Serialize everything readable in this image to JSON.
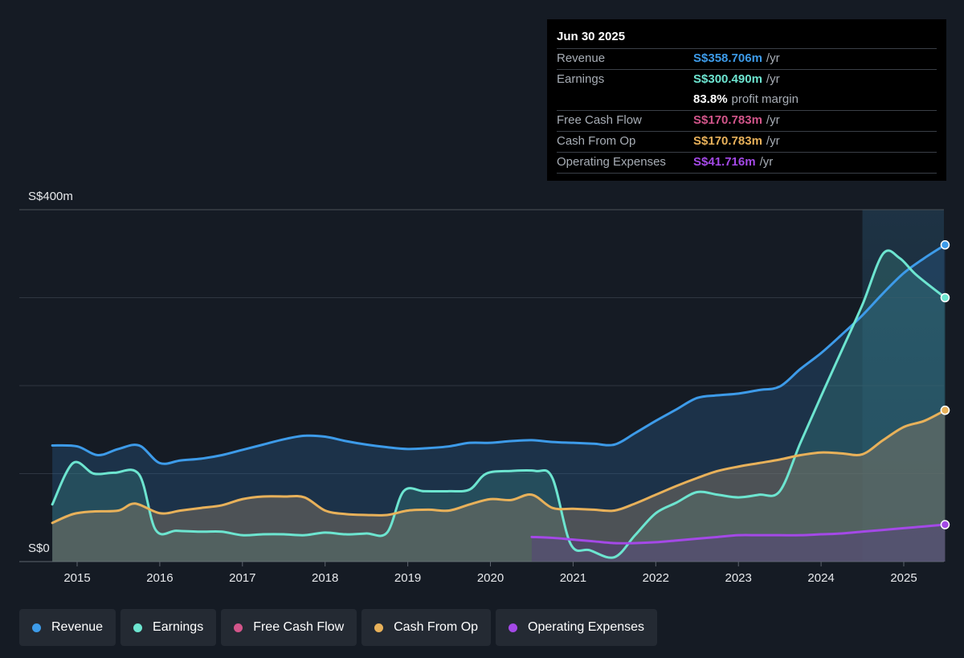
{
  "tooltip": {
    "date": "Jun 30 2025",
    "rows": [
      {
        "label": "Revenue",
        "value": "S$358.706m",
        "unit": "/yr",
        "color": "#3d9be9"
      },
      {
        "label": "Earnings",
        "value": "S$300.490m",
        "unit": "/yr",
        "color": "#6de5d0"
      },
      {
        "label": "",
        "value": "83.8%",
        "unit": "profit margin",
        "color": "#ffffff"
      },
      {
        "label": "Free Cash Flow",
        "value": "S$170.783m",
        "unit": "/yr",
        "color": "#d2558a"
      },
      {
        "label": "Cash From Op",
        "value": "S$170.783m",
        "unit": "/yr",
        "color": "#e8b15a"
      },
      {
        "label": "Operating Expenses",
        "value": "S$41.716m",
        "unit": "/yr",
        "color": "#a449e7"
      }
    ]
  },
  "legend": [
    {
      "label": "Revenue",
      "color": "#3d9be9"
    },
    {
      "label": "Earnings",
      "color": "#6de5d0"
    },
    {
      "label": "Free Cash Flow",
      "color": "#d2558a"
    },
    {
      "label": "Cash From Op",
      "color": "#e8b15a"
    },
    {
      "label": "Operating Expenses",
      "color": "#a449e7"
    }
  ],
  "chart_data": {
    "type": "area",
    "y_axis_labels": [
      "S$400m",
      "S$0"
    ],
    "ylim": [
      0,
      400
    ],
    "xlim": [
      2014.7,
      2025.5
    ],
    "x_ticks": [
      "2015",
      "2016",
      "2017",
      "2018",
      "2019",
      "2020",
      "2021",
      "2022",
      "2023",
      "2024",
      "2025"
    ],
    "gridlines": [
      0,
      100,
      200,
      300,
      400
    ],
    "highlight_start": 2024.5,
    "series": [
      {
        "name": "Revenue",
        "color": "#3d9be9",
        "x": [
          2014.7,
          2015.0,
          2015.25,
          2015.5,
          2015.75,
          2016.0,
          2016.25,
          2016.5,
          2016.75,
          2017.0,
          2017.25,
          2017.5,
          2017.75,
          2018.0,
          2018.25,
          2018.5,
          2018.75,
          2019.0,
          2019.25,
          2019.5,
          2019.75,
          2020.0,
          2020.25,
          2020.5,
          2020.75,
          2021.0,
          2021.25,
          2021.5,
          2021.75,
          2022.0,
          2022.25,
          2022.5,
          2022.75,
          2023.0,
          2023.25,
          2023.5,
          2023.75,
          2024.0,
          2024.25,
          2024.5,
          2024.75,
          2025.0,
          2025.25,
          2025.5
        ],
        "y": [
          132,
          131,
          121,
          128,
          132,
          112,
          115,
          117,
          121,
          127,
          133,
          139,
          143,
          142,
          137,
          133,
          130,
          128,
          129,
          131,
          135,
          135,
          137,
          138,
          136,
          135,
          134,
          133,
          146,
          160,
          173,
          186,
          189,
          191,
          195,
          199,
          219,
          237,
          258,
          280,
          305,
          328,
          345,
          360
        ]
      },
      {
        "name": "Earnings",
        "color": "#6de5d0",
        "x": [
          2014.7,
          2014.95,
          2015.2,
          2015.45,
          2015.75,
          2015.95,
          2016.2,
          2016.5,
          2016.75,
          2017.0,
          2017.25,
          2017.5,
          2017.75,
          2018.0,
          2018.25,
          2018.5,
          2018.75,
          2018.95,
          2019.2,
          2019.5,
          2019.75,
          2019.95,
          2020.25,
          2020.55,
          2020.75,
          2020.97,
          2021.2,
          2021.5,
          2021.75,
          2022.0,
          2022.25,
          2022.5,
          2022.75,
          2023.0,
          2023.25,
          2023.5,
          2023.75,
          2024.0,
          2024.25,
          2024.5,
          2024.75,
          2024.95,
          2025.15,
          2025.5
        ],
        "y": [
          65,
          112,
          100,
          101,
          99,
          36,
          35,
          34,
          34,
          30,
          31,
          31,
          30,
          33,
          31,
          32,
          33,
          80,
          80,
          80,
          82,
          100,
          103,
          103,
          95,
          20,
          13,
          5,
          30,
          55,
          67,
          79,
          76,
          73,
          76,
          80,
          135,
          188,
          240,
          292,
          350,
          345,
          326,
          300
        ]
      },
      {
        "name": "Free Cash Flow",
        "color": "#d2558a",
        "x": [
          2014.7,
          2014.95,
          2015.2,
          2015.5,
          2015.7,
          2016.0,
          2016.25,
          2016.5,
          2016.75,
          2017.0,
          2017.25,
          2017.5,
          2017.75,
          2018.0,
          2018.25,
          2018.5,
          2018.75,
          2019.0,
          2019.25,
          2019.5,
          2019.75,
          2020.0,
          2020.25,
          2020.5,
          2020.75,
          2021.0,
          2021.25,
          2021.5,
          2021.75,
          2022.0,
          2022.25,
          2022.5,
          2022.75,
          2023.0,
          2023.25,
          2023.5,
          2023.75,
          2024.0,
          2024.25,
          2024.5,
          2024.75,
          2025.0,
          2025.25,
          2025.5
        ],
        "y": [
          44,
          54,
          57,
          58,
          66,
          55,
          58,
          61,
          64,
          71,
          74,
          74,
          73,
          58,
          54,
          53,
          53,
          58,
          59,
          58,
          65,
          71,
          70,
          76,
          61,
          60,
          59,
          58,
          66,
          76,
          86,
          95,
          103,
          108,
          112,
          116,
          121,
          124,
          123,
          122,
          138,
          153,
          160,
          172
        ]
      },
      {
        "name": "Cash From Op",
        "color": "#e8b15a",
        "x": [
          2014.7,
          2014.95,
          2015.2,
          2015.5,
          2015.7,
          2016.0,
          2016.25,
          2016.5,
          2016.75,
          2017.0,
          2017.25,
          2017.5,
          2017.75,
          2018.0,
          2018.25,
          2018.5,
          2018.75,
          2019.0,
          2019.25,
          2019.5,
          2019.75,
          2020.0,
          2020.25,
          2020.5,
          2020.75,
          2021.0,
          2021.25,
          2021.5,
          2021.75,
          2022.0,
          2022.25,
          2022.5,
          2022.75,
          2023.0,
          2023.25,
          2023.5,
          2023.75,
          2024.0,
          2024.25,
          2024.5,
          2024.75,
          2025.0,
          2025.25,
          2025.5
        ],
        "y": [
          44,
          54,
          57,
          58,
          66,
          55,
          58,
          61,
          64,
          71,
          74,
          74,
          73,
          58,
          54,
          53,
          53,
          58,
          59,
          58,
          65,
          71,
          70,
          76,
          61,
          60,
          59,
          58,
          66,
          76,
          86,
          95,
          103,
          108,
          112,
          116,
          121,
          124,
          123,
          122,
          138,
          153,
          160,
          172
        ]
      },
      {
        "name": "Operating Expenses",
        "color": "#a449e7",
        "x": [
          2020.5,
          2020.75,
          2021.0,
          2021.25,
          2021.5,
          2021.75,
          2022.0,
          2022.25,
          2022.5,
          2022.75,
          2023.0,
          2023.25,
          2023.5,
          2023.75,
          2024.0,
          2024.25,
          2024.5,
          2024.75,
          2025.0,
          2025.25,
          2025.5
        ],
        "y": [
          28,
          27,
          25,
          23,
          21,
          21,
          22,
          24,
          26,
          28,
          30,
          30,
          30,
          30,
          31,
          32,
          34,
          36,
          38,
          40,
          42
        ]
      }
    ]
  }
}
